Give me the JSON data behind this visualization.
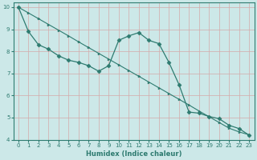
{
  "xlabel": "Humidex (Indice chaleur)",
  "bg_color": "#cce8e8",
  "grid_color": "#aacccc",
  "line_color": "#2e7b70",
  "xlim": [
    -0.5,
    23.5
  ],
  "ylim": [
    4,
    10.2
  ],
  "xticks": [
    0,
    1,
    2,
    3,
    4,
    5,
    6,
    7,
    8,
    9,
    10,
    11,
    12,
    13,
    14,
    15,
    16,
    17,
    18,
    19,
    20,
    21,
    22,
    23
  ],
  "yticks": [
    4,
    5,
    6,
    7,
    8,
    9,
    10
  ],
  "line1_x": [
    0,
    1,
    2,
    3,
    4,
    5,
    6,
    7,
    8,
    9,
    10,
    11,
    12,
    13,
    14,
    15,
    16,
    17,
    18,
    19,
    20,
    21,
    22,
    23
  ],
  "line1_y": [
    10.0,
    9.74,
    9.48,
    9.22,
    8.96,
    8.7,
    8.43,
    8.17,
    7.91,
    7.65,
    7.39,
    7.13,
    6.87,
    6.61,
    6.35,
    6.09,
    5.83,
    5.57,
    5.3,
    5.04,
    4.78,
    4.52,
    4.35,
    4.22
  ],
  "line2_x": [
    0,
    1,
    2,
    3,
    4,
    5,
    6,
    7,
    8,
    9,
    10,
    11,
    12,
    13,
    14,
    15,
    16,
    17,
    18,
    19,
    20,
    21,
    22,
    23
  ],
  "line2_y": [
    10.0,
    8.9,
    8.3,
    8.1,
    7.8,
    7.6,
    7.5,
    7.35,
    7.1,
    7.35,
    8.5,
    8.7,
    8.85,
    8.5,
    8.35,
    7.5,
    6.5,
    5.25,
    5.2,
    5.05,
    4.95,
    4.65,
    4.5,
    4.2
  ]
}
